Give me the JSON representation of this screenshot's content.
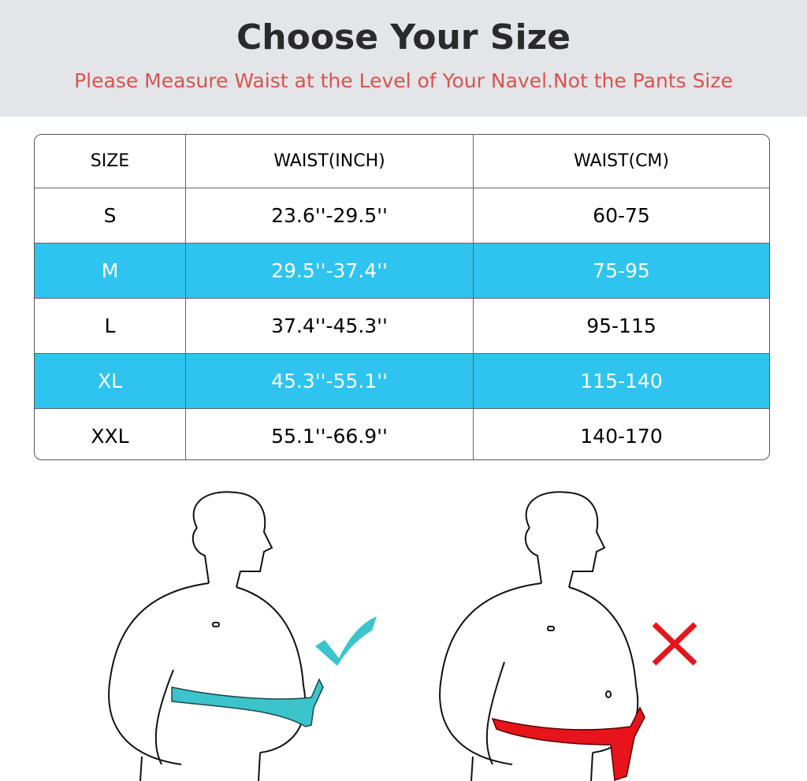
{
  "header": {
    "title": "Choose Your Size",
    "subtitle": "Please Measure Waist at the Level of Your Navel.Not the Pants Size"
  },
  "table": {
    "columns": [
      "SIZE",
      "WAIST(INCH)",
      "WAIST(CM)"
    ],
    "rows": [
      {
        "size": "S",
        "inch": "23.6''-29.5''",
        "cm": "60-75",
        "highlight": false
      },
      {
        "size": "M",
        "inch": "29.5''-37.4''",
        "cm": "75-95",
        "highlight": true
      },
      {
        "size": "L",
        "inch": "37.4''-45.3''",
        "cm": "95-115",
        "highlight": false
      },
      {
        "size": "XL",
        "inch": "45.3''-55.1''",
        "cm": "115-140",
        "highlight": true
      },
      {
        "size": "XXL",
        "inch": "55.1''-66.9''",
        "cm": "140-170",
        "highlight": false
      }
    ]
  },
  "colors": {
    "highlight": "#2ec4ef",
    "correct": "#3cc4cc",
    "wrong": "#e8141b",
    "subtitle": "#d9534f"
  },
  "illustrations": {
    "left": "correct-measurement-check-icon",
    "right": "wrong-measurement-cross-icon"
  }
}
